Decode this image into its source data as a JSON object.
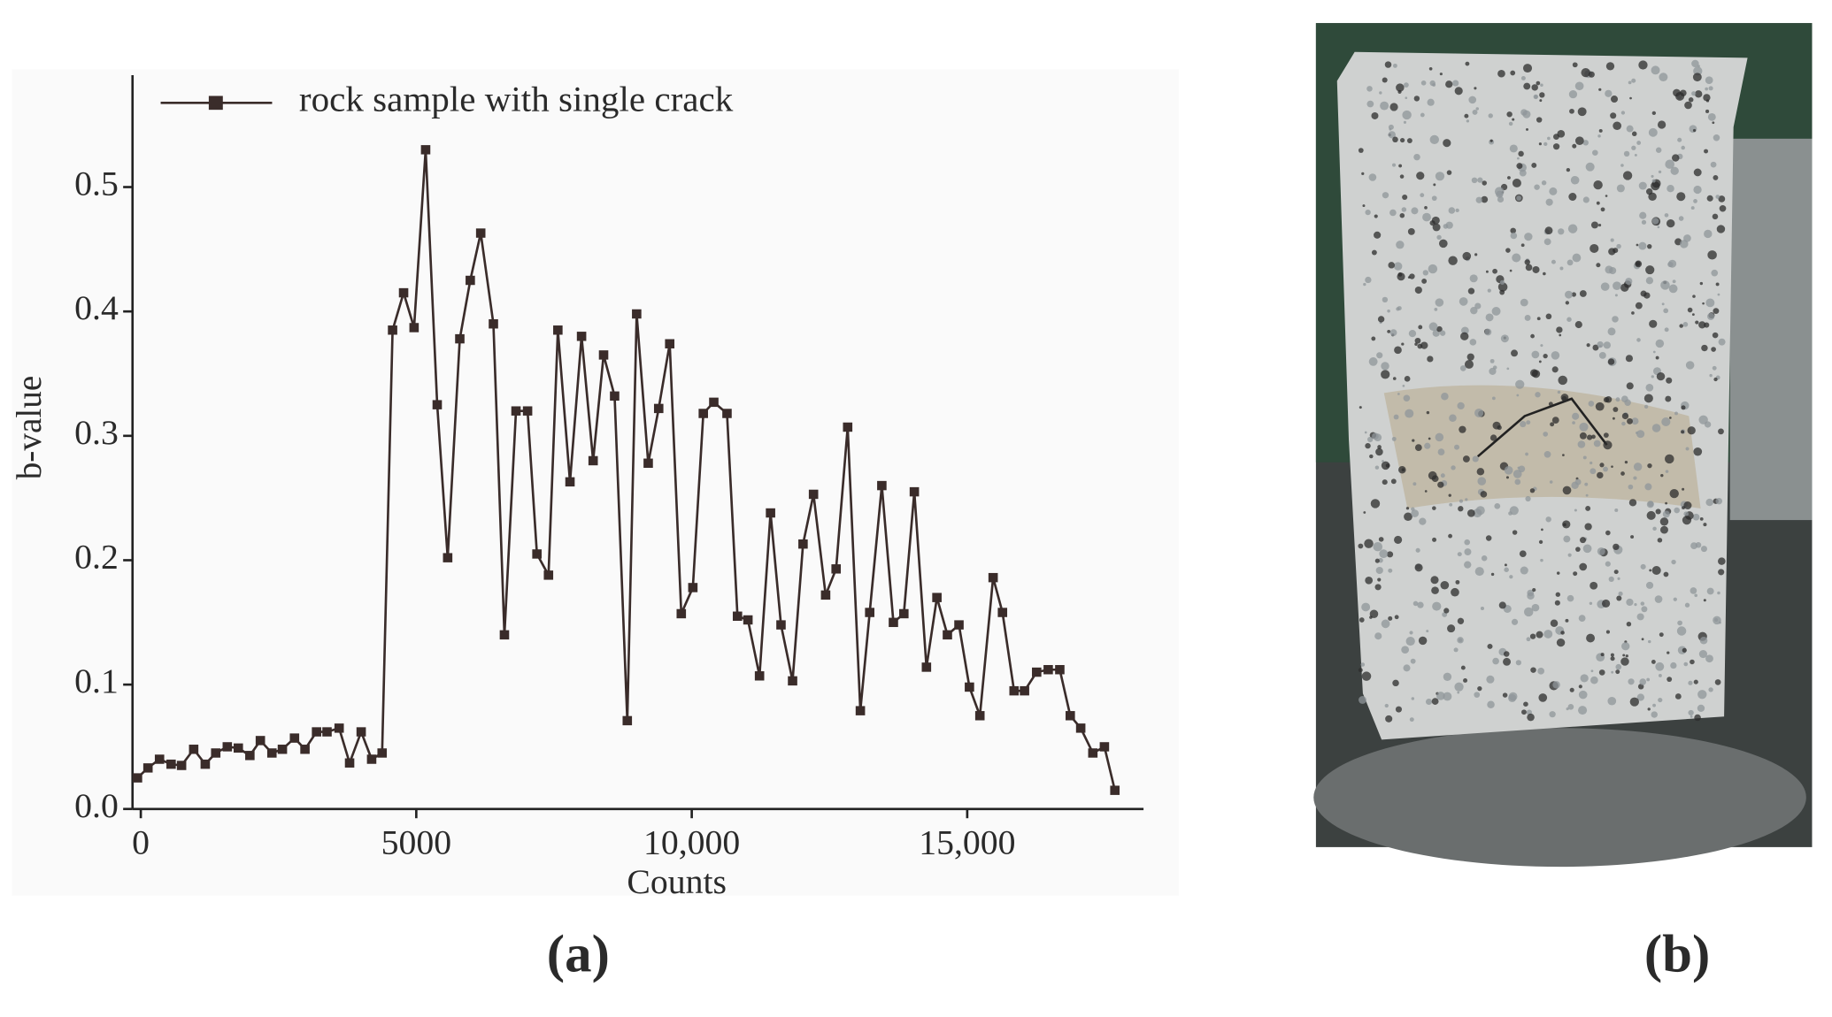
{
  "chart_data": {
    "type": "line",
    "panel_label": "(a)",
    "x_label": "Counts",
    "y_label": "b-value",
    "xlim": [
      -150,
      18200
    ],
    "ylim": [
      0,
      0.59
    ],
    "xticks": [
      0,
      5000,
      {
        "value": 10000,
        "label": "10,000"
      },
      {
        "value": 15000,
        "label": "15,000"
      }
    ],
    "yticks": [
      {
        "value": 0,
        "label": "0.0"
      },
      0.1,
      0.2,
      0.3,
      0.4,
      0.5
    ],
    "legend": "upper left",
    "marker": "square",
    "series": [
      {
        "name": "rock sample with single crack",
        "color": "#3a2c2a",
        "x": [
          -60,
          130,
          340,
          550,
          740,
          960,
          1170,
          1360,
          1570,
          1770,
          1980,
          2170,
          2380,
          2570,
          2790,
          2980,
          3190,
          3380,
          3600,
          3790,
          4000,
          4190,
          4380,
          4570,
          4770,
          4960,
          5170,
          5380,
          5570,
          5790,
          5980,
          6170,
          6400,
          6600,
          6810,
          7020,
          7190,
          7400,
          7570,
          7790,
          8000,
          8210,
          8400,
          8600,
          8830,
          9000,
          9210,
          9400,
          9600,
          9810,
          10020,
          10210,
          10400,
          10640,
          10830,
          11020,
          11230,
          11430,
          11620,
          11830,
          12020,
          12210,
          12430,
          12620,
          12830,
          13060,
          13230,
          13450,
          13660,
          13850,
          14040,
          14260,
          14450,
          14640,
          14850,
          15040,
          15230,
          15470,
          15640,
          15850,
          16040,
          16260,
          16470,
          16680,
          16870,
          17060,
          17280,
          17490,
          17680
        ],
        "values": [
          0.025,
          0.033,
          0.04,
          0.036,
          0.035,
          0.048,
          0.036,
          0.045,
          0.05,
          0.049,
          0.043,
          0.055,
          0.045,
          0.048,
          0.057,
          0.048,
          0.062,
          0.062,
          0.065,
          0.037,
          0.062,
          0.04,
          0.045,
          0.385,
          0.415,
          0.387,
          0.53,
          0.325,
          0.202,
          0.378,
          0.425,
          0.463,
          0.39,
          0.14,
          0.32,
          0.32,
          0.205,
          0.188,
          0.385,
          0.263,
          0.38,
          0.28,
          0.365,
          0.332,
          0.071,
          0.398,
          0.278,
          0.322,
          0.374,
          0.157,
          0.178,
          0.318,
          0.327,
          0.318,
          0.155,
          0.152,
          0.107,
          0.238,
          0.148,
          0.103,
          0.213,
          0.253,
          0.172,
          0.193,
          0.307,
          0.079,
          0.158,
          0.26,
          0.15,
          0.157,
          0.255,
          0.114,
          0.17,
          0.14,
          0.148,
          0.098,
          0.075,
          0.186,
          0.158,
          0.095,
          0.095,
          0.11,
          0.112,
          0.112,
          0.075,
          0.065,
          0.045,
          0.05,
          0.015
        ]
      }
    ]
  },
  "photo": {
    "label": "(b)"
  }
}
